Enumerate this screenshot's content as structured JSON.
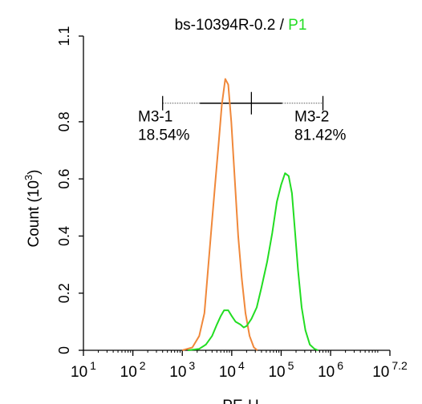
{
  "chart_data": {
    "type": "line",
    "title": {
      "part1": "bs-10394R-0.2 / ",
      "part2": "P1"
    },
    "xlabel": "PE-H",
    "ylabel": {
      "main": "Count  (10",
      "sup": "3",
      "tail": ")"
    },
    "x_scale": "log10",
    "xlim": [
      10,
      15848931.92
    ],
    "ylim": [
      0,
      1.1
    ],
    "x_ticks": [
      {
        "value": 10,
        "base": "10",
        "exp": "1"
      },
      {
        "value": 100,
        "base": "10",
        "exp": "2"
      },
      {
        "value": 1000,
        "base": "10",
        "exp": "3"
      },
      {
        "value": 10000,
        "base": "10",
        "exp": "4"
      },
      {
        "value": 100000,
        "base": "10",
        "exp": "5"
      },
      {
        "value": 1000000,
        "base": "10",
        "exp": "6"
      },
      {
        "value": 15848931.92,
        "base": "10",
        "exp": "7.2"
      }
    ],
    "y_ticks": [
      {
        "value": 0,
        "label": "0"
      },
      {
        "value": 0.2,
        "label": "0.2"
      },
      {
        "value": 0.4,
        "label": "0.4"
      },
      {
        "value": 0.6,
        "label": "0.6"
      },
      {
        "value": 0.8,
        "label": "0.8"
      },
      {
        "value": 1.1,
        "label": "1.1"
      }
    ],
    "series": [
      {
        "color": "#f0883a",
        "points": [
          [
            1000,
            0
          ],
          [
            1600,
            0.01
          ],
          [
            2200,
            0.05
          ],
          [
            2800,
            0.13
          ],
          [
            3300,
            0.28
          ],
          [
            3900,
            0.43
          ],
          [
            4600,
            0.58
          ],
          [
            5400,
            0.72
          ],
          [
            6300,
            0.86
          ],
          [
            7400,
            0.95
          ],
          [
            8500,
            0.93
          ],
          [
            9800,
            0.8
          ],
          [
            11500,
            0.6
          ],
          [
            13500,
            0.4
          ],
          [
            16000,
            0.25
          ],
          [
            19000,
            0.13
          ],
          [
            23000,
            0.05
          ],
          [
            28000,
            0.01
          ],
          [
            33000,
            0
          ]
        ]
      },
      {
        "color": "#22dd22",
        "points": [
          [
            1300,
            0
          ],
          [
            2200,
            0.005
          ],
          [
            3000,
            0.02
          ],
          [
            4000,
            0.05
          ],
          [
            5000,
            0.09
          ],
          [
            6000,
            0.12
          ],
          [
            7000,
            0.14
          ],
          [
            8500,
            0.14
          ],
          [
            10000,
            0.12
          ],
          [
            12000,
            0.1
          ],
          [
            15000,
            0.09
          ],
          [
            17500,
            0.08
          ],
          [
            20000,
            0.085
          ],
          [
            25000,
            0.11
          ],
          [
            32000,
            0.15
          ],
          [
            40000,
            0.22
          ],
          [
            52000,
            0.31
          ],
          [
            66000,
            0.41
          ],
          [
            82000,
            0.52
          ],
          [
            100000,
            0.58
          ],
          [
            120000,
            0.62
          ],
          [
            142000,
            0.61
          ],
          [
            165000,
            0.55
          ],
          [
            190000,
            0.42
          ],
          [
            220000,
            0.28
          ],
          [
            260000,
            0.15
          ],
          [
            310000,
            0.07
          ],
          [
            380000,
            0.02
          ],
          [
            470000,
            0.005
          ],
          [
            560000,
            0
          ]
        ]
      }
    ],
    "markers": [
      {
        "label": "M3-1",
        "percent": "18.54%",
        "from": 400,
        "to": 25000,
        "y": 0.865
      },
      {
        "label": "M3-2",
        "percent": "81.42%",
        "from": 25000,
        "to": 700000,
        "y": 0.865
      }
    ],
    "colors": {
      "title_accent": "#22dd22",
      "axis": "#000000",
      "marker": "#000000"
    }
  }
}
